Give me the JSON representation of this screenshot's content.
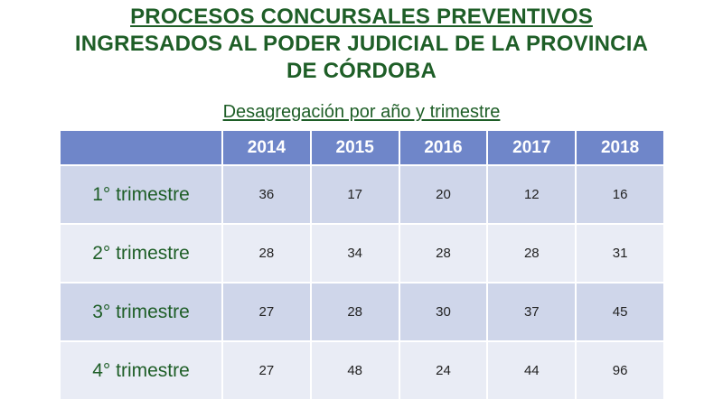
{
  "title": {
    "line1": "PROCESOS CONCURSALES PREVENTIVOS",
    "line2": "INGRESADOS AL PODER JUDICIAL DE LA PROVINCIA",
    "line3": "DE CÓRDOBA"
  },
  "subtitle": "Desagregación por año y trimestre",
  "table": {
    "corner": "",
    "columns": [
      "2014",
      "2015",
      "2016",
      "2017",
      "2018"
    ],
    "rows": [
      {
        "label": "1° trimestre",
        "values": [
          "36",
          "17",
          "20",
          "12",
          "16"
        ]
      },
      {
        "label": "2° trimestre",
        "values": [
          "28",
          "34",
          "28",
          "28",
          "31"
        ]
      },
      {
        "label": "3° trimestre",
        "values": [
          "27",
          "28",
          "30",
          "37",
          "45"
        ]
      },
      {
        "label": "4° trimestre",
        "values": [
          "27",
          "48",
          "24",
          "44",
          "96"
        ]
      }
    ]
  },
  "colors": {
    "title_green": "#1e5e27",
    "header_blue": "#6f86c9",
    "row_dark": "#cfd6ea",
    "row_light": "#e9ecf5"
  }
}
